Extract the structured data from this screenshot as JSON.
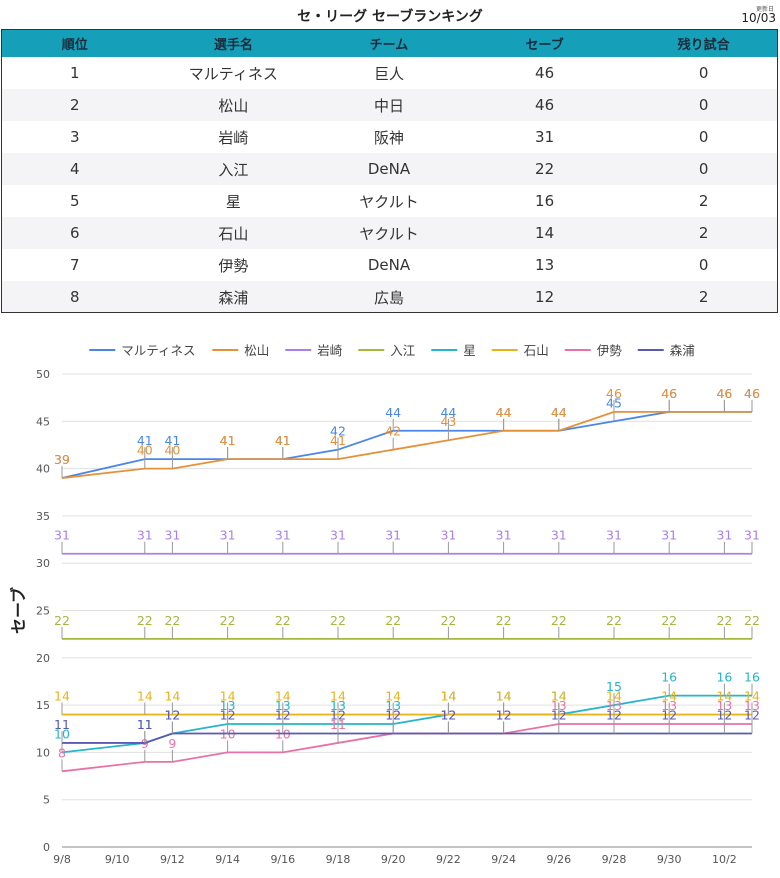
{
  "page": {
    "title": "セ・リーグ セーブランキング",
    "updated_label": "更新日",
    "updated_date": "10/03"
  },
  "table": {
    "headers": [
      "順位",
      "選手名",
      "チーム",
      "セーブ",
      "残り試合"
    ],
    "rows": [
      [
        "1",
        "マルティネス",
        "巨人",
        "46",
        "0"
      ],
      [
        "2",
        "松山",
        "中日",
        "46",
        "0"
      ],
      [
        "3",
        "岩崎",
        "阪神",
        "31",
        "0"
      ],
      [
        "4",
        "入江",
        "DeNA",
        "22",
        "0"
      ],
      [
        "5",
        "星",
        "ヤクルト",
        "16",
        "2"
      ],
      [
        "6",
        "石山",
        "ヤクルト",
        "14",
        "2"
      ],
      [
        "7",
        "伊勢",
        "DeNA",
        "13",
        "0"
      ],
      [
        "8",
        "森浦",
        "広島",
        "12",
        "2"
      ]
    ]
  },
  "colors": {
    "header_bg": "#159fb8",
    "grid": "#e0e0e0"
  },
  "chart_data": {
    "type": "line",
    "title": "",
    "ylabel": "セーブ",
    "xlabel": "",
    "ylim": [
      0,
      50
    ],
    "yticks": [
      0,
      5,
      10,
      15,
      20,
      25,
      30,
      35,
      40,
      45,
      50
    ],
    "x": [
      "9/8",
      "9/11",
      "9/12",
      "9/14",
      "9/16",
      "9/18",
      "9/20",
      "9/22",
      "9/24",
      "9/26",
      "9/28",
      "9/30",
      "10/2",
      "10/3"
    ],
    "xtick_labels": [
      "9/8",
      "9/10",
      "9/12",
      "9/14",
      "9/16",
      "9/18",
      "9/20",
      "9/22",
      "9/24",
      "9/26",
      "9/28",
      "9/30",
      "10/2"
    ],
    "legend_position": "top",
    "grid": true,
    "series": [
      {
        "name": "マルティネス",
        "color": "#4a86e8",
        "values": [
          39,
          41,
          41,
          41,
          41,
          42,
          44,
          44,
          44,
          44,
          45,
          46,
          46,
          46
        ]
      },
      {
        "name": "松山",
        "color": "#e69138",
        "values": [
          39,
          40,
          40,
          41,
          41,
          41,
          42,
          43,
          44,
          44,
          46,
          46,
          46,
          46
        ]
      },
      {
        "name": "岩崎",
        "color": "#a97ff0",
        "values": [
          31,
          31,
          31,
          31,
          31,
          31,
          31,
          31,
          31,
          31,
          31,
          31,
          31,
          31
        ]
      },
      {
        "name": "入江",
        "color": "#a4b83c",
        "values": [
          22,
          22,
          22,
          22,
          22,
          22,
          22,
          22,
          22,
          22,
          22,
          22,
          22,
          22
        ]
      },
      {
        "name": "星",
        "color": "#26b5c9",
        "values": [
          10,
          11,
          12,
          13,
          13,
          13,
          13,
          14,
          14,
          14,
          15,
          16,
          16,
          16
        ]
      },
      {
        "name": "石山",
        "color": "#e8b41a",
        "values": [
          14,
          14,
          14,
          14,
          14,
          14,
          14,
          14,
          14,
          14,
          14,
          14,
          14,
          14
        ]
      },
      {
        "name": "伊勢",
        "color": "#e872a8",
        "values": [
          8,
          9,
          9,
          10,
          10,
          11,
          12,
          12,
          12,
          13,
          13,
          13,
          13,
          13
        ]
      },
      {
        "name": "森浦",
        "color": "#5a5ab5",
        "values": [
          11,
          11,
          12,
          12,
          12,
          12,
          12,
          12,
          12,
          12,
          12,
          12,
          12,
          12
        ]
      }
    ]
  }
}
